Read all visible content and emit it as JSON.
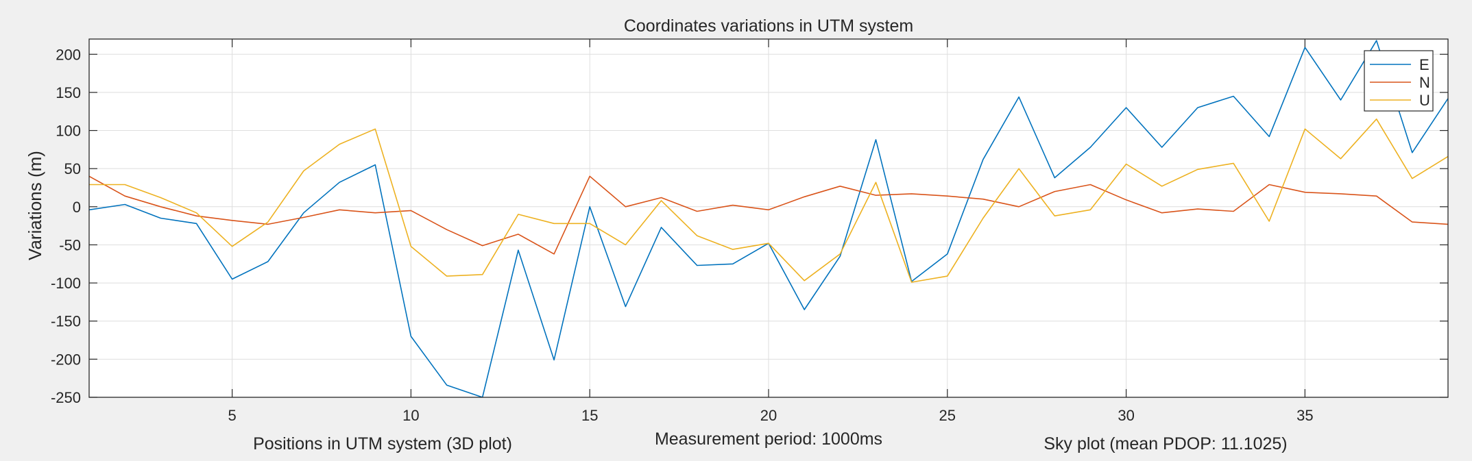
{
  "chart_data": {
    "type": "line",
    "title": "Coordinates variations in UTM system",
    "xlabel": "",
    "ylabel": "Variations (m)",
    "xlim": [
      1,
      39
    ],
    "ylim": [
      -250,
      220
    ],
    "xticks": [
      5,
      10,
      15,
      20,
      25,
      30,
      35
    ],
    "yticks": [
      -250,
      -200,
      -150,
      -100,
      -50,
      0,
      50,
      100,
      150,
      200
    ],
    "grid": true,
    "legend_position": "top-right",
    "x": [
      1,
      2,
      3,
      4,
      5,
      6,
      7,
      8,
      9,
      10,
      11,
      12,
      13,
      14,
      15,
      16,
      17,
      18,
      19,
      20,
      21,
      22,
      23,
      24,
      25,
      26,
      27,
      28,
      29,
      30,
      31,
      32,
      33,
      34,
      35,
      36,
      37,
      38,
      39
    ],
    "series": [
      {
        "name": "E",
        "color": "#0072BD",
        "values": [
          -4,
          3,
          -15,
          -22,
          -95,
          -72,
          -8,
          32,
          55,
          -170,
          -234,
          -250,
          -57,
          -201,
          0,
          -131,
          -27,
          -77,
          -75,
          -48,
          -135,
          -65,
          88,
          -98,
          -62,
          62,
          144,
          38,
          78,
          130,
          78,
          130,
          145,
          92,
          209,
          140,
          218,
          71,
          142
        ]
      },
      {
        "name": "N",
        "color": "#D95319",
        "values": [
          40,
          14,
          0,
          -12,
          -18,
          -23,
          -14,
          -4,
          -8,
          -5,
          -30,
          -51,
          -36,
          -62,
          40,
          0,
          12,
          -6,
          2,
          -4,
          13,
          27,
          15,
          17,
          14,
          10,
          0,
          20,
          29,
          9,
          -8,
          -3,
          -6,
          29,
          19,
          17,
          14,
          -20,
          -23
        ]
      },
      {
        "name": "U",
        "color": "#EDB120",
        "values": [
          29,
          29,
          12,
          -8,
          -52,
          -20,
          47,
          82,
          102,
          -52,
          -91,
          -89,
          -10,
          -22,
          -22,
          -50,
          8,
          -38,
          -56,
          -48,
          -97,
          -62,
          32,
          -99,
          -91,
          -15,
          50,
          -12,
          -4,
          56,
          27,
          49,
          57,
          -19,
          102,
          63,
          115,
          37,
          66
        ]
      }
    ]
  },
  "footer": {
    "left_label": "Positions in UTM system (3D plot)",
    "center_label": "Measurement period: 1000ms",
    "right_label": "Sky plot (mean PDOP: 11.1025)"
  }
}
